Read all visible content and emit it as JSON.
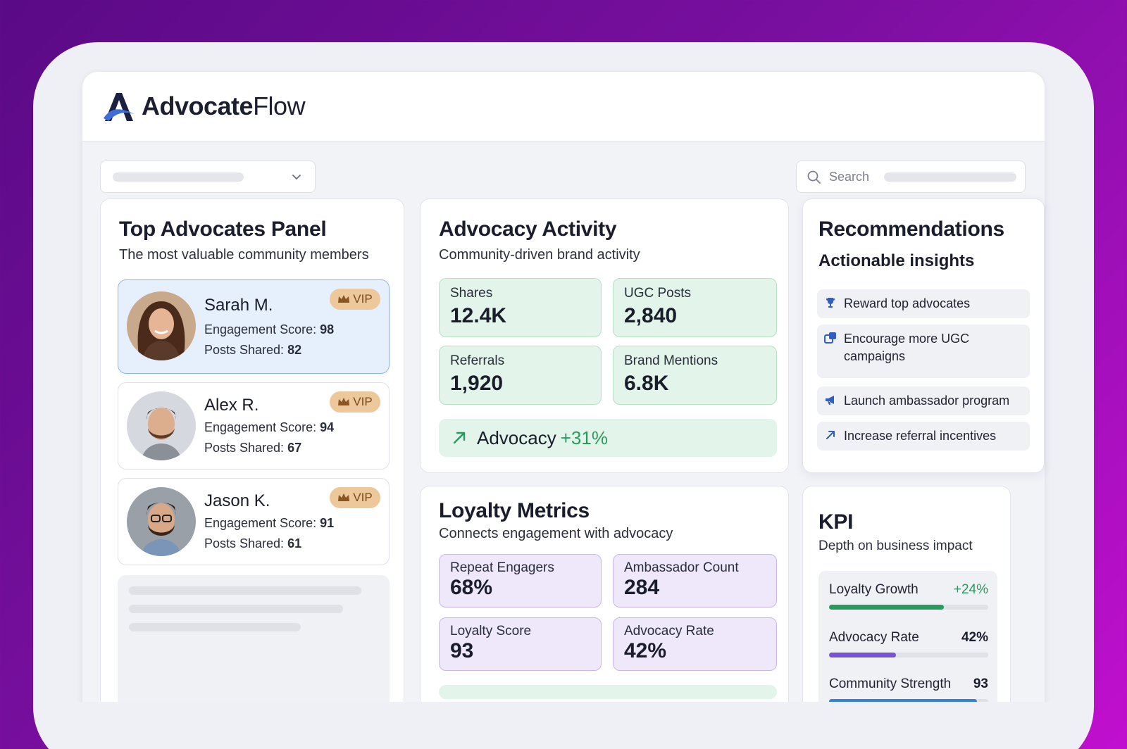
{
  "brand": {
    "name_bold": "Advocate",
    "name_light": "Flow"
  },
  "search": {
    "label": "Search"
  },
  "advocates": {
    "title": "Top Advocates Panel",
    "subtitle": "The most valuable community members",
    "badge": "VIP",
    "engagement_label": "Engagement Score:",
    "posts_label": "Posts Shared:",
    "items": [
      {
        "name": "Sarah M.",
        "engagement": "98",
        "posts": "82"
      },
      {
        "name": "Alex R.",
        "engagement": "94",
        "posts": "67"
      },
      {
        "name": "Jason K.",
        "engagement": "91",
        "posts": "61"
      }
    ]
  },
  "activity": {
    "title": "Advocacy Activity",
    "subtitle": "Community-driven brand activity",
    "tiles": [
      {
        "label": "Shares",
        "value": "12.4K"
      },
      {
        "label": "UGC Posts",
        "value": "2,840"
      },
      {
        "label": "Referrals",
        "value": "1,920"
      },
      {
        "label": "Brand Mentions",
        "value": "6.8K"
      }
    ],
    "summary_label": "Advocacy",
    "summary_value": "+31%"
  },
  "recommendations": {
    "title": "Recommendations",
    "subtitle": "Actionable insights",
    "items": [
      {
        "label": "Reward top advocates",
        "icon": "trophy-icon"
      },
      {
        "label": "Encourage more UGC campaigns",
        "icon": "share-icon"
      },
      {
        "label": "Launch ambassador program",
        "icon": "megaphone-icon"
      },
      {
        "label": "Increase referral incentives",
        "icon": "arrow-up-right-icon"
      }
    ]
  },
  "loyalty": {
    "title": "Loyalty Metrics",
    "subtitle": "Connects engagement with advocacy",
    "tiles": [
      {
        "label": "Repeat Engagers",
        "value": "68%"
      },
      {
        "label": "Ambassador Count",
        "value": "284"
      },
      {
        "label": "Loyalty Score",
        "value": "93"
      },
      {
        "label": "Advocacy Rate",
        "value": "42%"
      }
    ]
  },
  "kpi": {
    "title": "KPI",
    "subtitle": "Depth on business impact",
    "rows": [
      {
        "label": "Loyalty Growth",
        "value": "+24%",
        "fill": 0.72,
        "color": "#2a9b5e"
      },
      {
        "label": "Advocacy Rate",
        "value": "42%",
        "fill": 0.42,
        "color": "#7a52d6"
      },
      {
        "label": "Community Strength",
        "value": "93",
        "fill": 0.93,
        "color": "#3a7fd6"
      }
    ]
  },
  "colors": {
    "accent_blue": "#2f5fbf",
    "green": "#2a9b5e",
    "purple": "#7a52d6"
  }
}
